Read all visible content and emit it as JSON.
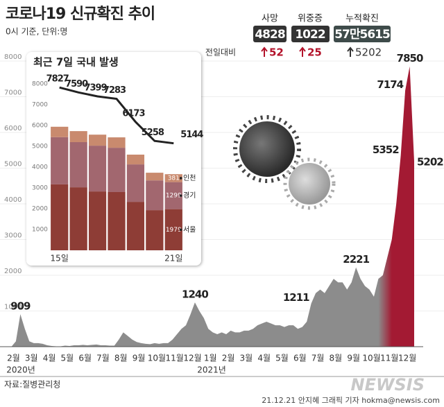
{
  "header": {
    "title": "코로나19 신규확진 추이",
    "subtitle": "0시 기준, 단위:명"
  },
  "summary": {
    "label": "전일대비",
    "items": [
      {
        "name": "사망",
        "total": 4828,
        "change": 52
      },
      {
        "name": "위중증",
        "total": 1022,
        "change": 25
      },
      {
        "name": "누적확진",
        "total": "57만5615",
        "change": 5202
      }
    ]
  },
  "chart_data": [
    {
      "type": "area",
      "color": "#8c8c8c",
      "highlight_color": "#a31a33",
      "ylim": [
        0,
        8000
      ],
      "yticks": [
        1000,
        2000,
        3000,
        4000,
        5000,
        6000,
        7000,
        8000
      ],
      "grid": true,
      "years": [
        "2020년",
        "2021년"
      ],
      "categories": [
        null,
        "2월",
        null,
        null,
        null,
        "3월",
        null,
        null,
        null,
        "4월",
        null,
        null,
        null,
        "5월",
        null,
        null,
        null,
        "6월",
        null,
        null,
        null,
        "7월",
        null,
        null,
        null,
        "8월",
        null,
        null,
        null,
        "9월",
        null,
        null,
        null,
        "10월",
        null,
        null,
        null,
        "11월",
        null,
        null,
        null,
        "12월",
        null,
        null,
        null,
        "1월",
        null,
        null,
        null,
        "2월",
        null,
        null,
        null,
        "3월",
        null,
        null,
        null,
        "4월",
        null,
        null,
        null,
        "5월",
        null,
        null,
        null,
        "6월",
        null,
        null,
        null,
        "7월",
        null,
        null,
        null,
        "8월",
        null,
        null,
        null,
        "9월",
        null,
        null,
        null,
        "10월",
        null,
        null,
        null,
        "11월",
        null,
        null,
        null,
        "12월",
        null,
        null
      ],
      "values": [
        0,
        0,
        150,
        909,
        500,
        150,
        100,
        100,
        80,
        40,
        20,
        10,
        10,
        30,
        20,
        40,
        40,
        50,
        40,
        50,
        60,
        40,
        40,
        30,
        30,
        200,
        400,
        300,
        200,
        130,
        100,
        80,
        70,
        100,
        80,
        100,
        100,
        200,
        350,
        500,
        600,
        900,
        1240,
        1000,
        800,
        500,
        400,
        350,
        400,
        350,
        450,
        400,
        400,
        450,
        450,
        500,
        600,
        650,
        700,
        650,
        600,
        600,
        550,
        600,
        600,
        500,
        550,
        700,
        1211,
        1500,
        1600,
        1500,
        1700,
        1900,
        1800,
        1800,
        1600,
        1800,
        2221,
        1900,
        1700,
        1600,
        1400,
        1900,
        2000,
        2500,
        3000,
        4000,
        5352,
        7174,
        7850,
        5202
      ],
      "value_labels": [
        null,
        null,
        null,
        "909",
        null,
        null,
        null,
        null,
        null,
        null,
        null,
        null,
        null,
        null,
        null,
        null,
        null,
        null,
        null,
        null,
        null,
        null,
        null,
        null,
        null,
        null,
        null,
        null,
        null,
        null,
        null,
        null,
        null,
        null,
        null,
        null,
        null,
        null,
        null,
        null,
        null,
        null,
        "1240",
        null,
        null,
        null,
        null,
        null,
        null,
        null,
        null,
        null,
        null,
        null,
        null,
        null,
        null,
        null,
        null,
        null,
        null,
        null,
        null,
        null,
        null,
        null,
        null,
        null,
        "1211",
        null,
        null,
        null,
        null,
        null,
        null,
        null,
        null,
        null,
        "2221",
        null,
        null,
        null,
        null,
        null,
        null,
        null,
        null,
        null,
        "5352",
        "7174",
        "7850",
        "5202"
      ]
    },
    {
      "type": "stacked-bar",
      "title": "최근 7일 국내 발생",
      "ylim": [
        0,
        8000
      ],
      "yticks": [
        1000,
        2000,
        3000,
        4000,
        5000,
        6000,
        7000,
        8000
      ],
      "label_last": true,
      "categories": [
        "15일",
        null,
        null,
        null,
        null,
        null,
        "21일"
      ],
      "series": [
        {
          "name": "서울",
          "color": "#8e3d36",
          "values": [
            3170,
            3030,
            2830,
            2800,
            2330,
            1930,
            1979
          ]
        },
        {
          "name": "경기",
          "color": "#a2676f",
          "values": [
            2270,
            2170,
            2200,
            2130,
            1800,
            1430,
            1299
          ]
        },
        {
          "name": "인천",
          "color": "#c98a6e",
          "values": [
            500,
            530,
            530,
            500,
            470,
            370,
            381
          ]
        },
        {
          "type": "line",
          "color": "#222222",
          "values": [
            7827,
            7590,
            7399,
            7283,
            6173,
            5258,
            5144
          ]
        }
      ]
    }
  ],
  "footer": {
    "source": "자료:질병관리청",
    "credit": "21.12.21 안지혜 그래픽 기자 hokma@newsis.com",
    "logo": "NEWSIS"
  }
}
